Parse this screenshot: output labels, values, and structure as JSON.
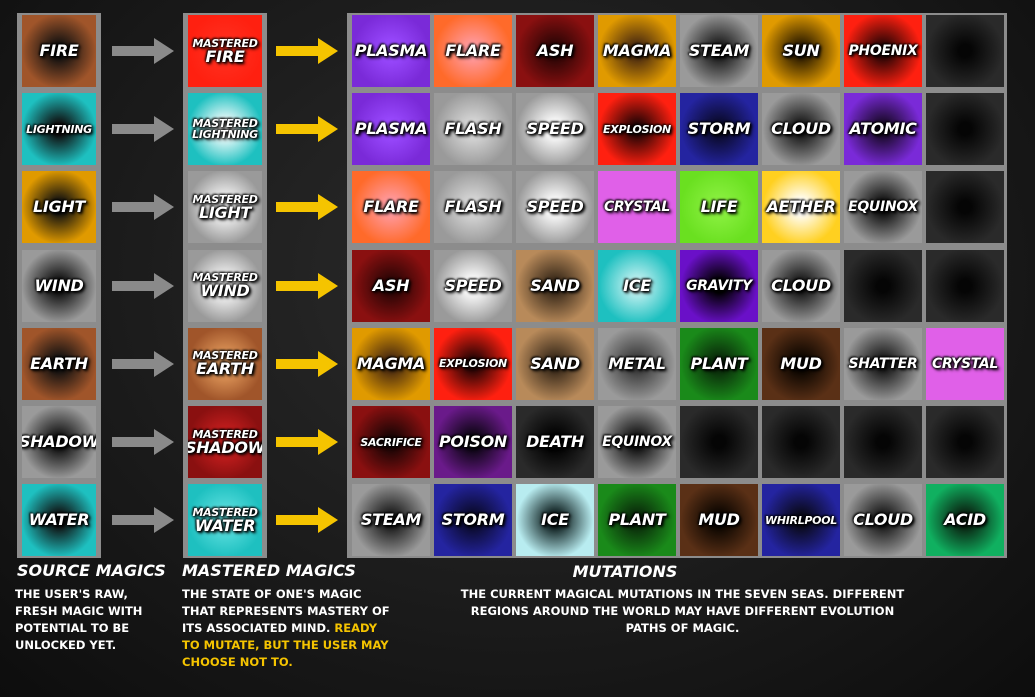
{
  "colors": {
    "red": "#ff2010",
    "brown": "#a0552a",
    "cyan": "#1ec0c0",
    "white": "#ffffff",
    "amber": "#e09a00",
    "gray": "#9a9a9a",
    "dark": "#2a2a2a",
    "maroon": "#8a1010",
    "purple": "#7a2ad8",
    "orange": "#ff6a2a",
    "navy": "#2424a0",
    "tan": "#b88a5a",
    "magenta": "#e060e8",
    "lime": "#6ae020",
    "yellow": "#ffd020",
    "green": "#1a8a1a",
    "darkbrown": "#5a3016",
    "violet": "#6a10c8",
    "jade": "#10b060",
    "palecyan": "#b8ecf0",
    "darkpurple": "#6a1a8a",
    "arrow_gray": "#8a8a8a",
    "arrow_yellow": "#f5c400"
  },
  "source": [
    {
      "label": "FIRE",
      "color": "brown",
      "center": "#101010",
      "size": 16
    },
    {
      "label": "LIGHTNING",
      "color": "cyan",
      "center": "#101010",
      "size": 11
    },
    {
      "label": "LIGHT",
      "color": "amber",
      "center": "#101010",
      "size": 16
    },
    {
      "label": "WIND",
      "color": "gray",
      "center": "#101010",
      "size": 16
    },
    {
      "label": "EARTH",
      "color": "brown",
      "center": "#101010",
      "size": 16
    },
    {
      "label": "SHADOW",
      "color": "gray",
      "center": "#101010",
      "size": 16
    },
    {
      "label": "WATER",
      "color": "cyan",
      "center": "#101010",
      "size": 16
    }
  ],
  "mastered": [
    {
      "top": "MASTERED",
      "bottom": "FIRE",
      "color": "red",
      "center": "#ff3020"
    },
    {
      "top": "MASTERED",
      "bottom": "LIGHTNING",
      "color": "cyan",
      "center": "#ffffff"
    },
    {
      "top": "MASTERED",
      "bottom": "LIGHT",
      "color": "gray",
      "center": "#ffffff"
    },
    {
      "top": "MASTERED",
      "bottom": "WIND",
      "color": "gray",
      "center": "#ffffff"
    },
    {
      "top": "MASTERED",
      "bottom": "EARTH",
      "color": "brown",
      "center": "#e8a060"
    },
    {
      "top": "MASTERED",
      "bottom": "SHADOW",
      "color": "maroon",
      "center": "#d02020"
    },
    {
      "top": "MASTERED",
      "bottom": "WATER",
      "color": "cyan",
      "center": "#60e0e0"
    }
  ],
  "mutations": [
    [
      {
        "label": "PLASMA",
        "color": "purple",
        "center": "#9a4aff"
      },
      {
        "label": "FLARE",
        "color": "orange",
        "center": "#ff9aa0"
      },
      {
        "label": "ASH",
        "color": "maroon",
        "center": "#2a0505"
      },
      {
        "label": "MAGMA",
        "color": "amber",
        "center": "#4a2a10"
      },
      {
        "label": "STEAM",
        "color": "gray",
        "center": "#1a1a1a"
      },
      {
        "label": "SUN",
        "color": "amber",
        "center": "#2a1a00"
      },
      {
        "label": "PHOENIX",
        "color": "red",
        "center": "#2a0505"
      },
      {
        "label": "",
        "color": "dark",
        "center": "#050505"
      }
    ],
    [
      {
        "label": "PLASMA",
        "color": "purple",
        "center": "#9a4aff"
      },
      {
        "label": "FLASH",
        "color": "gray",
        "center": "#d8d8d8"
      },
      {
        "label": "SPEED",
        "color": "gray",
        "center": "#ffffff"
      },
      {
        "label": "EXPLOSION",
        "color": "red",
        "center": "#2a0505"
      },
      {
        "label": "STORM",
        "color": "navy",
        "center": "#0a0a2a"
      },
      {
        "label": "CLOUD",
        "color": "gray",
        "center": "#1a1a1a"
      },
      {
        "label": "ATOMIC",
        "color": "purple",
        "center": "#1a0a2a"
      },
      {
        "label": "",
        "color": "dark",
        "center": "#050505"
      }
    ],
    [
      {
        "label": "FLARE",
        "color": "orange",
        "center": "#ff9aa0"
      },
      {
        "label": "FLASH",
        "color": "gray",
        "center": "#d8d8d8"
      },
      {
        "label": "SPEED",
        "color": "gray",
        "center": "#ffffff"
      },
      {
        "label": "CRYSTAL",
        "color": "magenta",
        "center": "#e060e8"
      },
      {
        "label": "LIFE",
        "color": "lime",
        "center": "#8af040"
      },
      {
        "label": "AETHER",
        "color": "yellow",
        "center": "#ffffff"
      },
      {
        "label": "EQUINOX",
        "color": "gray",
        "center": "#101010"
      },
      {
        "label": "",
        "color": "dark",
        "center": "#050505"
      }
    ],
    [
      {
        "label": "ASH",
        "color": "maroon",
        "center": "#2a0505"
      },
      {
        "label": "SPEED",
        "color": "gray",
        "center": "#ffffff"
      },
      {
        "label": "SAND",
        "color": "tan",
        "center": "#3a2a1a"
      },
      {
        "label": "ICE",
        "color": "cyan",
        "center": "#c0f0f0"
      },
      {
        "label": "GRAVITY",
        "color": "violet",
        "center": "#000000"
      },
      {
        "label": "CLOUD",
        "color": "gray",
        "center": "#1a1a1a"
      },
      {
        "label": "",
        "color": "dark",
        "center": "#050505"
      },
      {
        "label": "",
        "color": "dark",
        "center": "#050505"
      }
    ],
    [
      {
        "label": "MAGMA",
        "color": "amber",
        "center": "#4a2a10"
      },
      {
        "label": "EXPLOSION",
        "color": "red",
        "center": "#2a0505"
      },
      {
        "label": "SAND",
        "color": "tan",
        "center": "#3a2a1a"
      },
      {
        "label": "METAL",
        "color": "gray",
        "center": "#3a3a3a"
      },
      {
        "label": "PLANT",
        "color": "green",
        "center": "#0a2a0a"
      },
      {
        "label": "MUD",
        "color": "darkbrown",
        "center": "#0a0500"
      },
      {
        "label": "SHATTER",
        "color": "gray",
        "center": "#1a1a1a"
      },
      {
        "label": "CRYSTAL",
        "color": "magenta",
        "center": "#e060e8"
      }
    ],
    [
      {
        "label": "SACRIFICE",
        "color": "maroon",
        "center": "#1a0505"
      },
      {
        "label": "POISON",
        "color": "darkpurple",
        "center": "#0a0510"
      },
      {
        "label": "DEATH",
        "color": "dark",
        "center": "#000000"
      },
      {
        "label": "EQUINOX",
        "color": "gray",
        "center": "#101010"
      },
      {
        "label": "",
        "color": "dark",
        "center": "#050505"
      },
      {
        "label": "",
        "color": "dark",
        "center": "#050505"
      },
      {
        "label": "",
        "color": "dark",
        "center": "#050505"
      },
      {
        "label": "",
        "color": "dark",
        "center": "#050505"
      }
    ],
    [
      {
        "label": "STEAM",
        "color": "gray",
        "center": "#1a1a1a"
      },
      {
        "label": "STORM",
        "color": "navy",
        "center": "#0a0a2a"
      },
      {
        "label": "ICE",
        "color": "palecyan",
        "center": "#0a1a1a"
      },
      {
        "label": "PLANT",
        "color": "green",
        "center": "#0a2a0a"
      },
      {
        "label": "MUD",
        "color": "darkbrown",
        "center": "#0a0500"
      },
      {
        "label": "WHIRLPOOL",
        "color": "navy",
        "center": "#0a0a1a"
      },
      {
        "label": "CLOUD",
        "color": "gray",
        "center": "#1a1a1a"
      },
      {
        "label": "ACID",
        "color": "jade",
        "center": "#0a2010"
      }
    ]
  ],
  "captions": {
    "source_title": "SOURCE MAGICS",
    "source_desc": "THE USER'S RAW, FRESH MAGIC WITH POTENTIAL TO BE UNLOCKED YET.",
    "mastered_title": "MASTERED MAGICS",
    "mastered_desc": "THE STATE OF ONE'S MAGIC THAT REPRESENTS MASTERY OF ITS ASSOCIATED MIND.",
    "mastered_desc_highlight": "READY TO MUTATE, BUT THE USER MAY CHOOSE NOT TO.",
    "mutations_title": "MUTATIONS",
    "mutations_desc": "THE CURRENT MAGICAL MUTATIONS IN THE SEVEN SEAS. DIFFERENT REGIONS AROUND THE WORLD MAY HAVE DIFFERENT EVOLUTION PATHS OF MAGIC."
  }
}
